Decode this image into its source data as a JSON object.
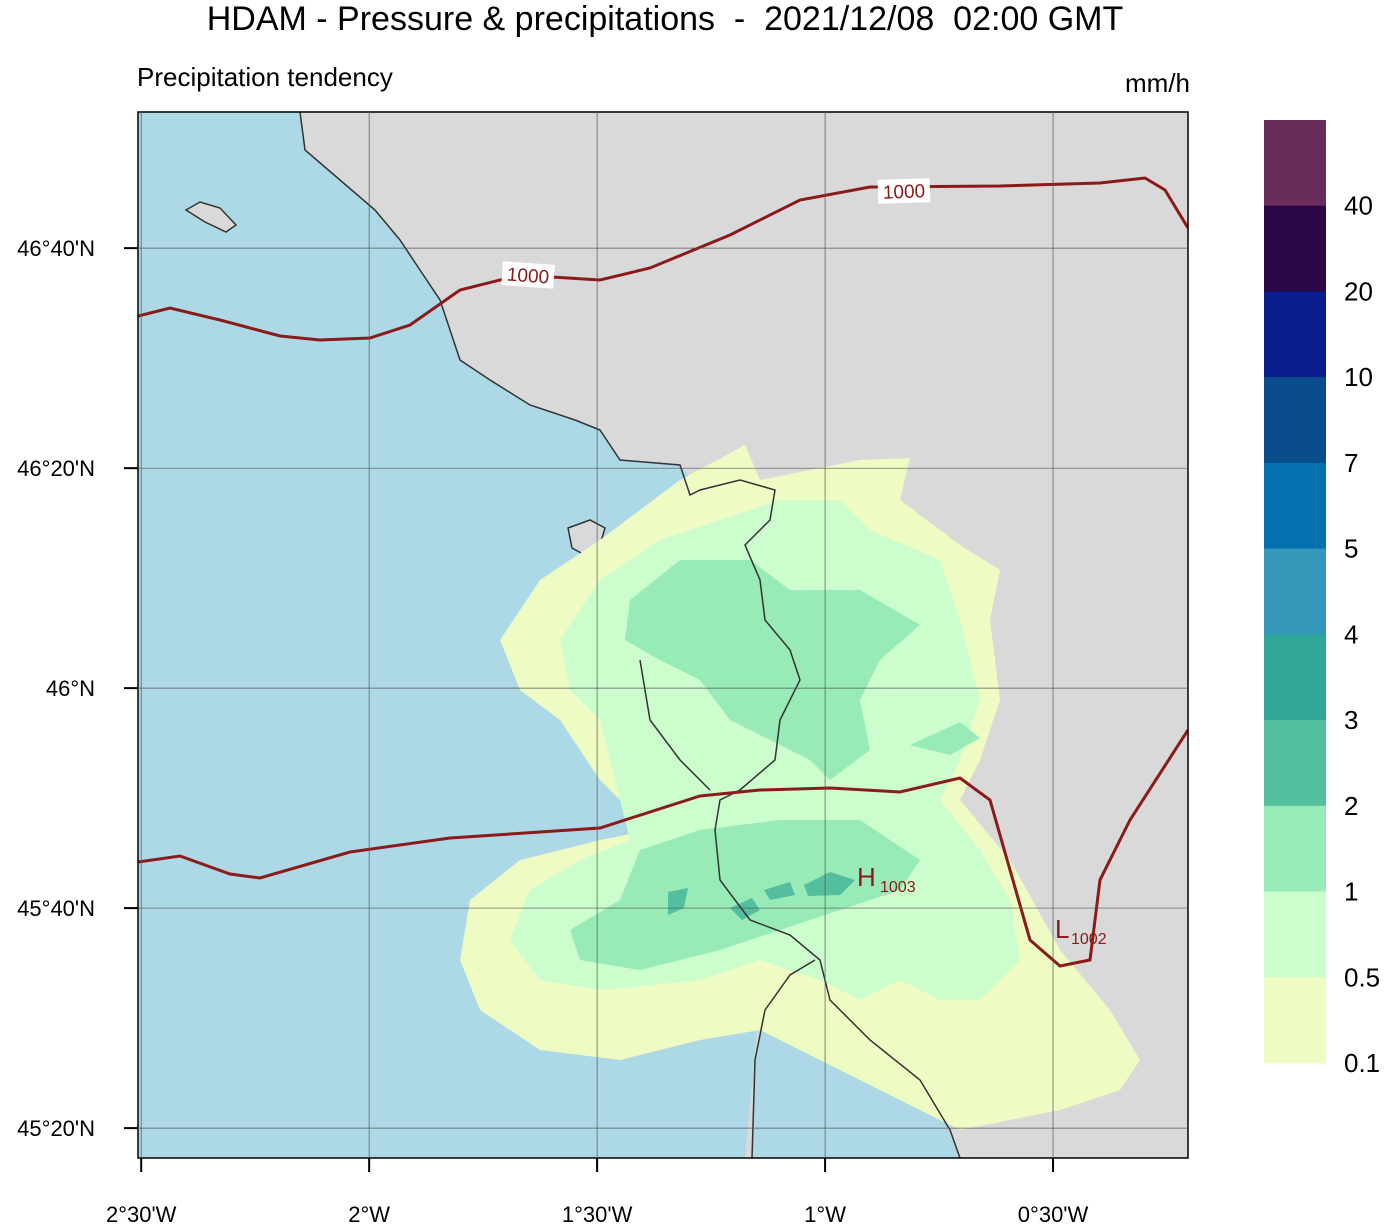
{
  "header": {
    "title": "HDAM - Pressure & precipitations  -  2021/12/08  02:00 GMT",
    "subtitle": "Precipitation tendency",
    "units": "mm/h"
  },
  "map": {
    "xlim": [
      -2.507,
      -0.204
    ],
    "ylim": [
      45.288,
      46.873
    ],
    "grid": true,
    "lon_ticks": [
      {
        "value": -2.5,
        "label": "2°30'W"
      },
      {
        "value": -2,
        "label": "2°W"
      },
      {
        "value": -1.5,
        "label": "1°30'W"
      },
      {
        "value": -1,
        "label": "1°W"
      },
      {
        "value": -0.5,
        "label": "0°30'W"
      }
    ],
    "lat_ticks": [
      {
        "value": 46.6667,
        "label": "46°40'N"
      },
      {
        "value": 46.3333,
        "label": "46°20'N"
      },
      {
        "value": 46,
        "label": "46°N"
      },
      {
        "value": 45.6667,
        "label": "45°40'N"
      },
      {
        "value": 45.3333,
        "label": "45°20'N"
      }
    ],
    "isobar_labels": [
      "1000",
      "1000"
    ],
    "centers": [
      {
        "letter": "H",
        "pressure": "1003"
      },
      {
        "letter": "L",
        "pressure": "1002"
      }
    ]
  },
  "colorbar": {
    "colors": [
      "#6a2c5a",
      "#2b0845",
      "#0b1d8e",
      "#0a4d8b",
      "#0570b0",
      "#3597b9",
      "#31a897",
      "#53bf9e",
      "#98ebb6",
      "#cbfdcd",
      "#eefbc3"
    ],
    "labels": [
      "40",
      "20",
      "10",
      "7",
      "5",
      "4",
      "3",
      "2",
      "1",
      "0.5",
      "0.1"
    ]
  }
}
